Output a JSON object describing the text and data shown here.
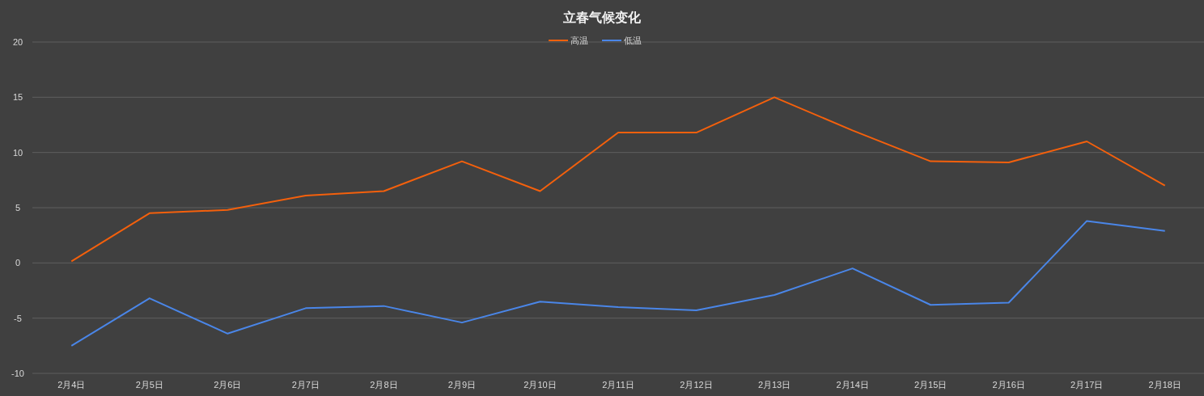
{
  "chart_data": {
    "type": "line",
    "title": "立春气候变化",
    "categories": [
      "2月4日",
      "2月5日",
      "2月6日",
      "2月7日",
      "2月8日",
      "2月9日",
      "2月10日",
      "2月11日",
      "2月12日",
      "2月13日",
      "2月14日",
      "2月15日",
      "2月16日",
      "2月17日",
      "2月18日"
    ],
    "series": [
      {
        "name": "高温",
        "color": "#f4600c",
        "values": [
          0.15,
          4.5,
          4.8,
          6.1,
          6.5,
          9.2,
          6.5,
          11.8,
          11.8,
          15,
          12,
          9.2,
          9.1,
          11,
          7
        ]
      },
      {
        "name": "低温",
        "color": "#4a86e8",
        "values": [
          -7.5,
          -3.2,
          -6.4,
          -4.1,
          -3.9,
          -5.4,
          -3.5,
          -4,
          -4.3,
          -2.9,
          -0.5,
          -3.8,
          -3.6,
          3.8,
          2.9
        ]
      }
    ],
    "ylim": [
      -10,
      20
    ],
    "yticks": [
      -10,
      -5,
      0,
      5,
      10,
      15,
      20
    ],
    "grid": "y",
    "legend": "top",
    "marker": "none",
    "line_style": "solid"
  }
}
